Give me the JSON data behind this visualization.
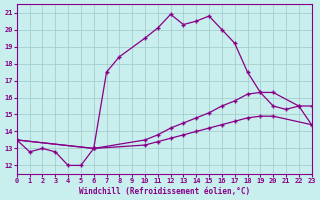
{
  "xlabel": "Windchill (Refroidissement éolien,°C)",
  "background_color": "#c8eeee",
  "line_color": "#880088",
  "grid_color": "#a0c8c8",
  "xlim": [
    0,
    23
  ],
  "ylim": [
    11.5,
    21.5
  ],
  "yticks": [
    12,
    13,
    14,
    15,
    16,
    17,
    18,
    19,
    20,
    21
  ],
  "xticks": [
    0,
    1,
    2,
    3,
    4,
    5,
    6,
    7,
    8,
    9,
    10,
    11,
    12,
    13,
    14,
    15,
    16,
    17,
    18,
    19,
    20,
    21,
    22,
    23
  ],
  "curve_main_x": [
    0,
    1,
    2,
    3,
    4,
    5,
    6,
    7,
    8,
    10,
    11,
    12,
    13,
    14,
    15,
    16,
    17,
    18,
    19,
    20,
    21,
    22,
    23
  ],
  "curve_main_y": [
    13.5,
    12.8,
    13.0,
    12.8,
    12.0,
    12.0,
    13.0,
    17.5,
    18.4,
    19.5,
    20.1,
    20.9,
    20.3,
    20.5,
    20.8,
    20.0,
    19.2,
    17.5,
    16.3,
    15.5,
    15.3,
    15.5,
    14.4
  ],
  "curve_upper_x": [
    0,
    6,
    10,
    11,
    12,
    13,
    14,
    15,
    16,
    17,
    18,
    19,
    20,
    22,
    23
  ],
  "curve_upper_y": [
    13.5,
    13.0,
    13.5,
    13.8,
    14.2,
    14.5,
    14.8,
    15.1,
    15.5,
    15.8,
    16.2,
    16.3,
    16.3,
    15.5,
    15.5
  ],
  "curve_lower_x": [
    0,
    6,
    10,
    11,
    12,
    13,
    14,
    15,
    16,
    17,
    18,
    19,
    20,
    23
  ],
  "curve_lower_y": [
    13.5,
    13.0,
    13.2,
    13.4,
    13.6,
    13.8,
    14.0,
    14.2,
    14.4,
    14.6,
    14.8,
    14.9,
    14.9,
    14.4
  ]
}
